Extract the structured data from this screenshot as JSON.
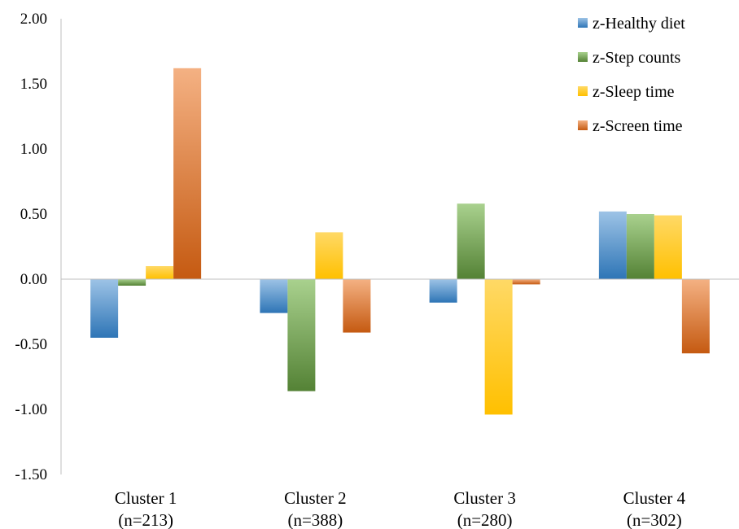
{
  "chart_data": {
    "type": "bar",
    "categories": [
      [
        "Cluster 1",
        "(n=213)"
      ],
      [
        "Cluster 2",
        "(n=388)"
      ],
      [
        "Cluster 3",
        "(n=280)"
      ],
      [
        "Cluster 4",
        "(n=302)"
      ]
    ],
    "series": [
      {
        "name": "z-Healthy diet",
        "values": [
          -0.45,
          -0.26,
          -0.18,
          0.52
        ],
        "color_light": "#9DC3E6",
        "color_dark": "#2E75B6"
      },
      {
        "name": "z-Step counts",
        "values": [
          -0.05,
          -0.86,
          0.58,
          0.5
        ],
        "color_light": "#A9D18E",
        "color_dark": "#548235"
      },
      {
        "name": "z-Sleep time",
        "values": [
          0.1,
          0.36,
          -1.04,
          0.49
        ],
        "color_light": "#FFD966",
        "color_dark": "#FFC000"
      },
      {
        "name": "z-Screen time",
        "values": [
          1.62,
          -0.41,
          -0.04,
          -0.57
        ],
        "color_light": "#F4B183",
        "color_dark": "#C55A11"
      }
    ],
    "yticks": [
      "2.00",
      "1.50",
      "1.00",
      "0.50",
      "0.00",
      "-0.50",
      "-1.00",
      "-1.50"
    ],
    "ylim": [
      -1.5,
      2.0
    ],
    "grid": false,
    "legend_position": "top-right",
    "title": "",
    "xlabel": "",
    "ylabel": ""
  }
}
